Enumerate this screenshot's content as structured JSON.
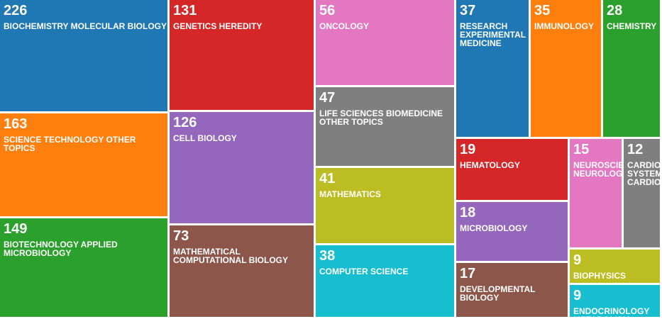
{
  "chart_data": {
    "type": "treemap",
    "items": [
      {
        "label": "BIOCHEMISTRY MOLECULAR BIOLOGY",
        "value": 226,
        "color": "#1f77b4"
      },
      {
        "label": "SCIENCE TECHNOLOGY OTHER TOPICS",
        "value": 163,
        "color": "#ff7f0e"
      },
      {
        "label": "BIOTECHNOLOGY APPLIED MICROBIOLOGY",
        "value": 149,
        "color": "#2ca02c"
      },
      {
        "label": "GENETICS HEREDITY",
        "value": 131,
        "color": "#d62728"
      },
      {
        "label": "CELL BIOLOGY",
        "value": 126,
        "color": "#9467bd"
      },
      {
        "label": "MATHEMATICAL COMPUTATIONAL BIOLOGY",
        "value": 73,
        "color": "#8c564b"
      },
      {
        "label": "ONCOLOGY",
        "value": 56,
        "color": "#e377c2"
      },
      {
        "label": "LIFE SCIENCES BIOMEDICINE OTHER TOPICS",
        "value": 47,
        "color": "#7f7f7f"
      },
      {
        "label": "MATHEMATICS",
        "value": 41,
        "color": "#bcbd22"
      },
      {
        "label": "COMPUTER SCIENCE",
        "value": 38,
        "color": "#17becf"
      },
      {
        "label": "RESEARCH EXPERIMENTAL MEDICINE",
        "value": 37,
        "color": "#1f77b4"
      },
      {
        "label": "IMMUNOLOGY",
        "value": 35,
        "color": "#ff7f0e"
      },
      {
        "label": "CHEMISTRY",
        "value": 28,
        "color": "#2ca02c"
      },
      {
        "label": "HEMATOLOGY",
        "value": 19,
        "color": "#d62728"
      },
      {
        "label": "MICROBIOLOGY",
        "value": 18,
        "color": "#9467bd"
      },
      {
        "label": "DEVELOPMENTAL BIOLOGY",
        "value": 17,
        "color": "#8c564b"
      },
      {
        "label": "NEUROSCIENCES NEUROLOGY",
        "value": 15,
        "color": "#e377c2"
      },
      {
        "label": "CARDIOVASCULAR SYSTEM CARDIOLOGY",
        "value": 12,
        "color": "#7f7f7f"
      },
      {
        "label": "BIOPHYSICS",
        "value": 9,
        "color": "#bcbd22"
      },
      {
        "label": "ENDOCRINOLOGY METABOLISM",
        "value": 9,
        "color": "#17becf"
      }
    ]
  }
}
